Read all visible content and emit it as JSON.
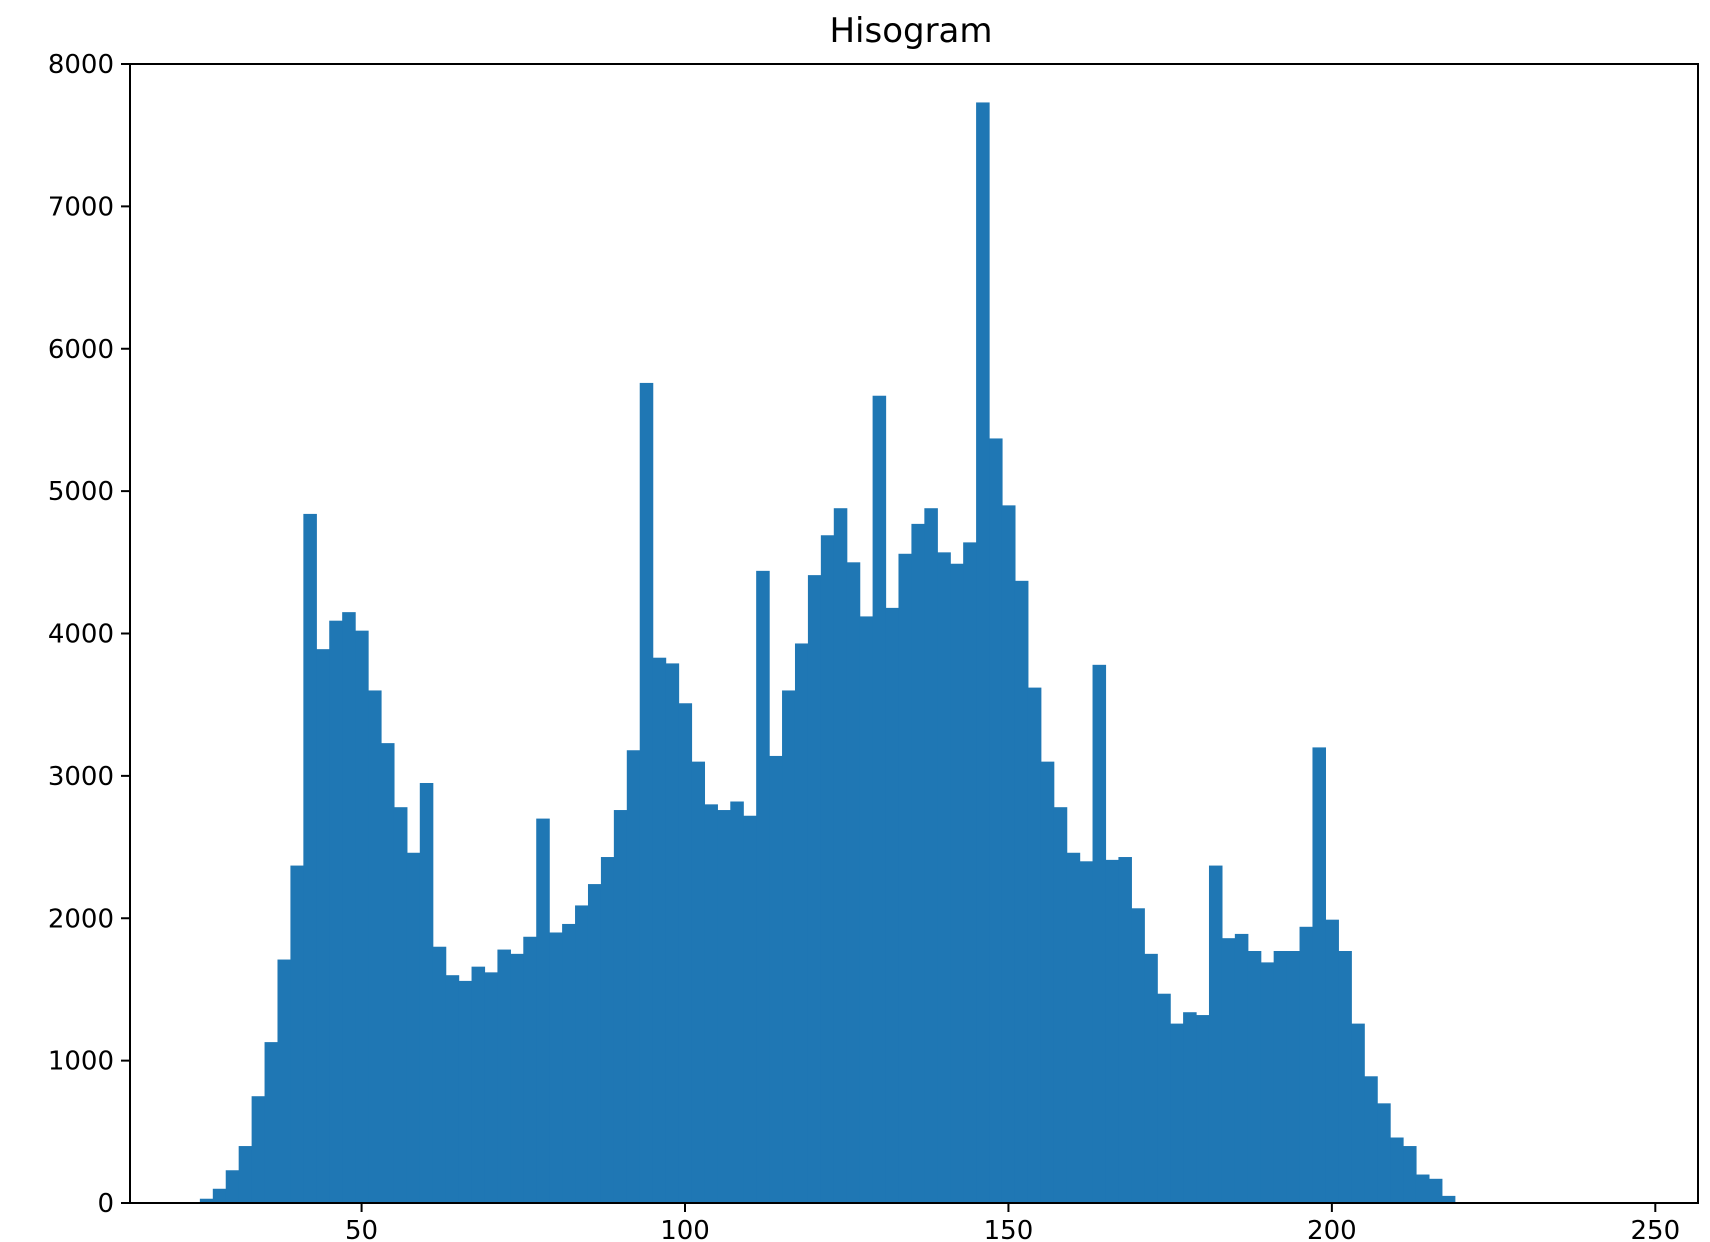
{
  "chart_data": {
    "type": "bar",
    "title": "Hisogram",
    "xlabel": "",
    "ylabel": "",
    "xlim": [
      14.2,
      256.6
    ],
    "ylim": [
      0,
      8000
    ],
    "xticks": [
      50,
      100,
      150,
      200,
      250
    ],
    "yticks": [
      0,
      1000,
      2000,
      3000,
      4000,
      5000,
      6000,
      7000,
      8000
    ],
    "xtick_labels": [
      "50",
      "100",
      "150",
      "200",
      "250"
    ],
    "ytick_labels": [
      "0",
      "1000",
      "2000",
      "3000",
      "4000",
      "5000",
      "6000",
      "7000",
      "8000"
    ],
    "grid": false,
    "bar_color": "#1f77b4",
    "bin_start": 25,
    "bin_width": 2.0,
    "values": [
      30,
      100,
      230,
      400,
      750,
      1130,
      1710,
      2370,
      4840,
      3890,
      4090,
      4150,
      4020,
      3600,
      3230,
      2780,
      2460,
      2950,
      1800,
      1600,
      1560,
      1660,
      1620,
      1780,
      1750,
      1870,
      2700,
      1900,
      1960,
      2090,
      2240,
      2430,
      2760,
      3180,
      5760,
      3830,
      3790,
      3510,
      3100,
      2800,
      2760,
      2820,
      2720,
      4440,
      3140,
      3600,
      3930,
      4410,
      4690,
      4880,
      4500,
      4120,
      5670,
      4180,
      4560,
      4770,
      4880,
      4570,
      4490,
      4640,
      7730,
      5370,
      4900,
      4370,
      3620,
      3100,
      2780,
      2460,
      2400,
      3780,
      2410,
      2430,
      2070,
      1750,
      1470,
      1260,
      1340,
      1320,
      2370,
      1860,
      1890,
      1770,
      1690,
      1770,
      1770,
      1940,
      3200,
      1990,
      1770,
      1260,
      890,
      700,
      460,
      400,
      200,
      170,
      50
    ]
  }
}
